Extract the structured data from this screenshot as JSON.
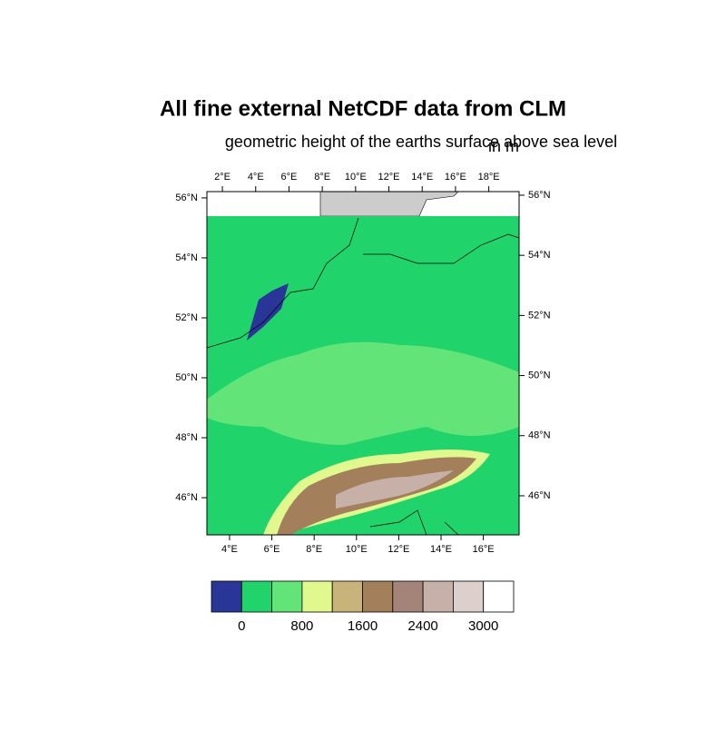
{
  "title": "All fine external NetCDF data from CLM",
  "subtitle": "geometric height of the earths surface above sea level",
  "units": "in m",
  "map": {
    "top_axis": {
      "lim": [
        1.07,
        19.82
      ],
      "ticks": [
        {
          "value": 2,
          "label": "2°E"
        },
        {
          "value": 4,
          "label": "4°E"
        },
        {
          "value": 6,
          "label": "6°E"
        },
        {
          "value": 8,
          "label": "8°E"
        },
        {
          "value": 10,
          "label": "10°E"
        },
        {
          "value": 12,
          "label": "12°E"
        },
        {
          "value": 14,
          "label": "14°E"
        },
        {
          "value": 16,
          "label": "16°E"
        },
        {
          "value": 18,
          "label": "18°E"
        }
      ]
    },
    "bottom_axis": {
      "lim": [
        2.93,
        17.69
      ],
      "ticks": [
        {
          "value": 4,
          "label": "4°E"
        },
        {
          "value": 6,
          "label": "6°E"
        },
        {
          "value": 8,
          "label": "8°E"
        },
        {
          "value": 10,
          "label": "10°E"
        },
        {
          "value": 12,
          "label": "12°E"
        },
        {
          "value": 14,
          "label": "14°E"
        },
        {
          "value": 16,
          "label": "16°E"
        }
      ]
    },
    "left_axis": {
      "lim": [
        44.76,
        56.21
      ],
      "ticks": [
        {
          "value": 46,
          "label": "46°N"
        },
        {
          "value": 48,
          "label": "48°N"
        },
        {
          "value": 50,
          "label": "50°N"
        },
        {
          "value": 52,
          "label": "52°N"
        },
        {
          "value": 54,
          "label": "54°N"
        },
        {
          "value": 56,
          "label": "56°N"
        }
      ]
    },
    "right_axis": {
      "lim": [
        44.7,
        56.12
      ],
      "ticks": [
        {
          "value": 46,
          "label": "46°N"
        },
        {
          "value": 48,
          "label": "48°N"
        },
        {
          "value": 50,
          "label": "50°N"
        },
        {
          "value": 52,
          "label": "52°N"
        },
        {
          "value": 54,
          "label": "54°N"
        },
        {
          "value": 56,
          "label": "56°N"
        }
      ]
    }
  },
  "colorbar": {
    "colors": [
      "#2a3598",
      "#20d36a",
      "#62e478",
      "#e0f88e",
      "#c8b47a",
      "#a47f5c",
      "#a48378",
      "#c6b0a8",
      "#dccfcc",
      "#ffffff"
    ],
    "labels": [
      0,
      800,
      1600,
      2400,
      3000
    ]
  }
}
